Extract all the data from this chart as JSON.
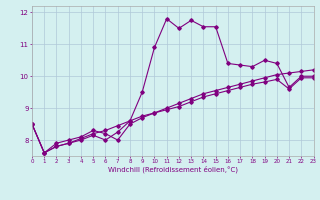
{
  "xlabel": "Windchill (Refroidissement éolien,°C)",
  "bg_color": "#d4f0f0",
  "line_color": "#800080",
  "grid_color": "#b0c8d8",
  "xlim": [
    0,
    23
  ],
  "ylim": [
    7.5,
    12.2
  ],
  "yticks": [
    8,
    9,
    10,
    11,
    12
  ],
  "xticks": [
    0,
    1,
    2,
    3,
    4,
    5,
    6,
    7,
    8,
    9,
    10,
    11,
    12,
    13,
    14,
    15,
    16,
    17,
    18,
    19,
    20,
    21,
    22,
    23
  ],
  "series1": [
    8.5,
    7.6,
    7.8,
    7.9,
    8.0,
    8.15,
    8.0,
    8.25,
    8.6,
    9.5,
    10.9,
    11.8,
    11.5,
    11.75,
    11.55,
    11.55,
    10.4,
    10.35,
    10.3,
    10.5,
    10.4,
    9.65,
    10.0,
    10.0
  ],
  "series2": [
    8.5,
    7.6,
    7.9,
    8.0,
    8.1,
    8.3,
    8.2,
    8.0,
    8.5,
    8.7,
    8.85,
    9.0,
    9.15,
    9.3,
    9.45,
    9.55,
    9.65,
    9.75,
    9.85,
    9.95,
    10.05,
    10.1,
    10.15,
    10.2
  ],
  "series3": [
    8.5,
    7.6,
    7.8,
    7.9,
    8.05,
    8.2,
    8.3,
    8.45,
    8.6,
    8.75,
    8.85,
    8.95,
    9.05,
    9.2,
    9.35,
    9.45,
    9.55,
    9.65,
    9.75,
    9.82,
    9.9,
    9.6,
    9.95,
    9.95
  ]
}
